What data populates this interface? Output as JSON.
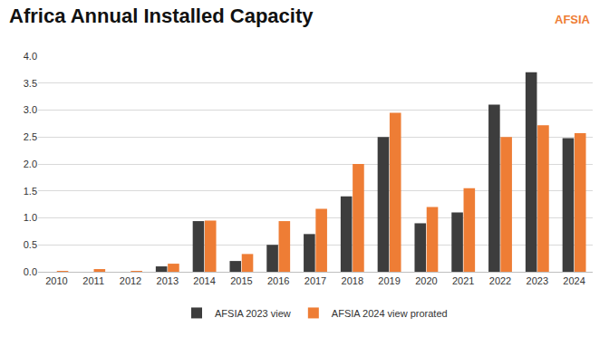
{
  "chart_data": {
    "type": "bar",
    "title": "Africa Annual Installed Capacity",
    "annotations": [
      "AFSIA"
    ],
    "categories": [
      "2010",
      "2011",
      "2012",
      "2013",
      "2014",
      "2015",
      "2016",
      "2017",
      "2018",
      "2019",
      "2020",
      "2021",
      "2022",
      "2023",
      "2024"
    ],
    "series": [
      {
        "name": "AFSIA 2023 view",
        "color": "#3d3d3d",
        "values": [
          0,
          0,
          0,
          0.1,
          0.94,
          0.2,
          0.5,
          0.7,
          1.4,
          2.5,
          0.9,
          1.1,
          3.1,
          3.7,
          2.48
        ]
      },
      {
        "name": "AFSIA 2024 view prorated",
        "color": "#ee7d35",
        "values": [
          0.01,
          0.05,
          0.01,
          0.15,
          0.95,
          0.33,
          0.94,
          1.17,
          2.0,
          2.95,
          1.2,
          1.55,
          2.5,
          2.72,
          2.57
        ]
      }
    ],
    "ylim": [
      0,
      4
    ],
    "yticks": [
      {
        "value": 0,
        "label": "0.0"
      },
      {
        "value": 0.5,
        "label": "0.5"
      },
      {
        "value": 1,
        "label": "1.0"
      },
      {
        "value": 1.5,
        "label": "1.5"
      },
      {
        "value": 2,
        "label": "2.0"
      },
      {
        "value": 2.5,
        "label": "2.5"
      },
      {
        "value": 3,
        "label": "3.0"
      },
      {
        "value": 3.5,
        "label": "3.5"
      },
      {
        "value": 4,
        "label": "4.0"
      }
    ],
    "grid": true,
    "legend": "bottom"
  }
}
